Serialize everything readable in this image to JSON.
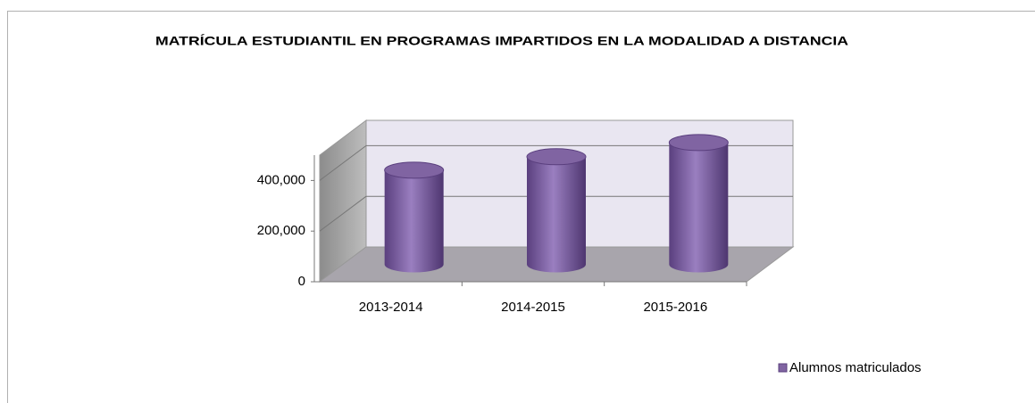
{
  "chart_data": {
    "type": "bar3d",
    "title": "MATRÍCULA ESTUDIANTIL EN PROGRAMAS IMPARTIDOS EN LA MODALIDAD A DISTANCIA",
    "categories": [
      "2013-2014",
      "2014-2015",
      "2015-2016"
    ],
    "series": [
      {
        "name": "Alumnos matriculados",
        "color": "#8064a2",
        "values": [
          372000,
          425000,
          481000
        ]
      }
    ],
    "ylim": [
      0,
      500000
    ],
    "yticks": [
      0,
      {
        "value": 200000,
        "label": "200,000"
      },
      {
        "value": 400000,
        "label": "400,000"
      }
    ],
    "grid": true,
    "legend": "bottom-right"
  }
}
